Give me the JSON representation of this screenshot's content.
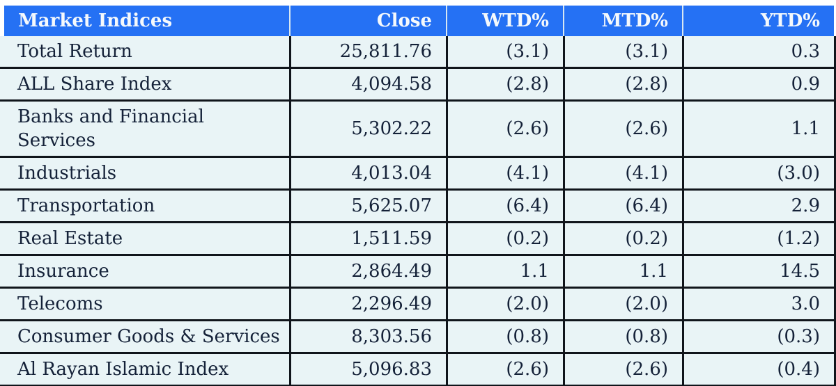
{
  "table": {
    "title": "Market Indices",
    "columns": [
      {
        "label": "Market Indices"
      },
      {
        "label": "Close"
      },
      {
        "label": "WTD%"
      },
      {
        "label": "MTD%"
      },
      {
        "label": "YTD%"
      }
    ],
    "rows": [
      {
        "cells": [
          "Total Return",
          "25,811.76",
          "(3.1)",
          "(3.1)",
          "0.3"
        ]
      },
      {
        "cells": [
          "ALL Share Index",
          "4,094.58",
          "(2.8)",
          "(2.8)",
          "0.9"
        ]
      },
      {
        "cells": [
          "Banks and Financial Services",
          "5,302.22",
          "(2.6)",
          "(2.6)",
          "1.1"
        ]
      },
      {
        "cells": [
          "Industrials",
          "4,013.04",
          "(4.1)",
          "(4.1)",
          "(3.0)"
        ]
      },
      {
        "cells": [
          "Transportation",
          "5,625.07",
          "(6.4)",
          "(6.4)",
          "2.9"
        ]
      },
      {
        "cells": [
          "Real Estate",
          "1,511.59",
          "(0.2)",
          "(0.2)",
          "(1.2)"
        ]
      },
      {
        "cells": [
          "Insurance",
          "2,864.49",
          "1.1",
          "1.1",
          "14.5"
        ]
      },
      {
        "cells": [
          "Telecoms",
          "2,296.49",
          "(2.0)",
          "(2.0)",
          "3.0"
        ]
      },
      {
        "cells": [
          "Consumer Goods & Services",
          "8,303.56",
          "(0.8)",
          "(0.8)",
          "(0.3)"
        ]
      },
      {
        "cells": [
          "Al Rayan Islamic Index",
          "5,096.83",
          "(2.6)",
          "(2.6)",
          "(0.4)"
        ]
      }
    ],
    "negative_format": "parentheses"
  },
  "colors": {
    "header_bg": "#2571f4",
    "header_text": "#f5f9fc",
    "header_separator": "#d8e7f1",
    "row_bg": "#e9f4f6",
    "body_text": "#142138",
    "grid_border": "#10151b",
    "page_bg": "#ffffff"
  }
}
